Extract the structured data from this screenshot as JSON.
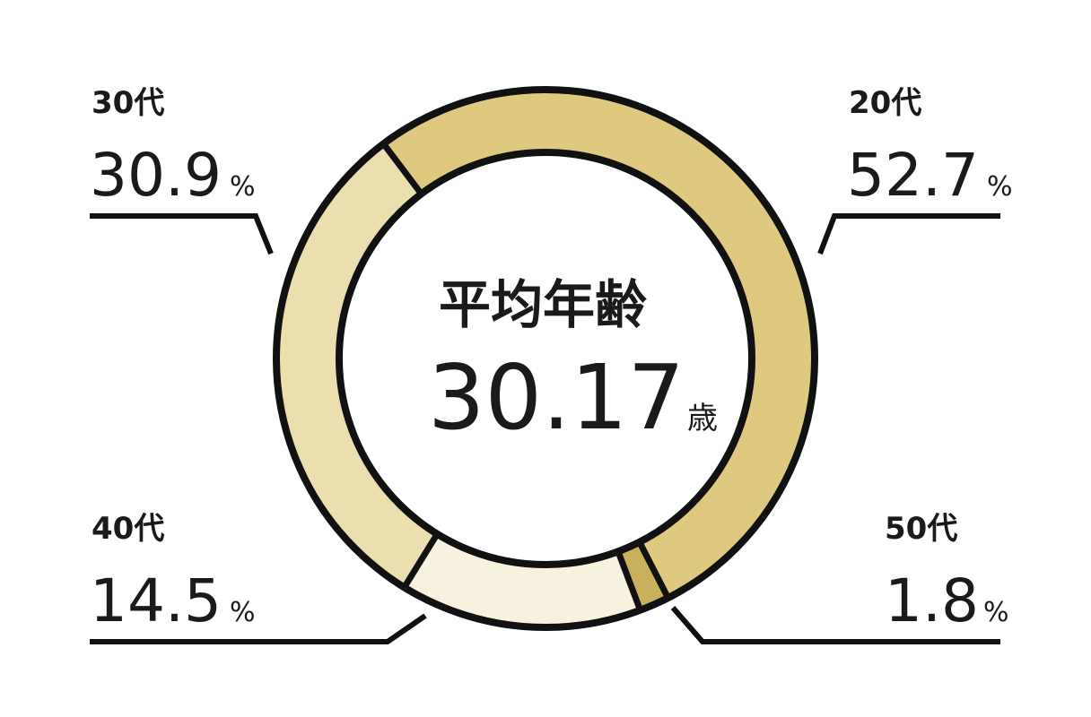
{
  "chart_data": {
    "type": "pie",
    "variant": "donut",
    "categories": [
      "20代",
      "50代",
      "40代",
      "30代"
    ],
    "values": [
      52.7,
      1.8,
      14.5,
      30.9
    ],
    "value_unit": "%",
    "colors": [
      "#dfc97f",
      "#c8b05c",
      "#f7f2e0",
      "#ebdfaf"
    ],
    "outline_color": "#111111",
    "center": {
      "title": "平均年齢",
      "value": "30.17",
      "unit": "歳"
    },
    "legend_placement": "callouts-around-ring",
    "labels": [
      {
        "category": "20代",
        "value": "52.7",
        "unit": "%",
        "position": "top-right"
      },
      {
        "category": "50代",
        "value": "1.8",
        "unit": "%",
        "position": "bottom-right"
      },
      {
        "category": "40代",
        "value": "14.5",
        "unit": "%",
        "position": "bottom-left"
      },
      {
        "category": "30代",
        "value": "30.9",
        "unit": "%",
        "position": "top-left"
      }
    ]
  }
}
